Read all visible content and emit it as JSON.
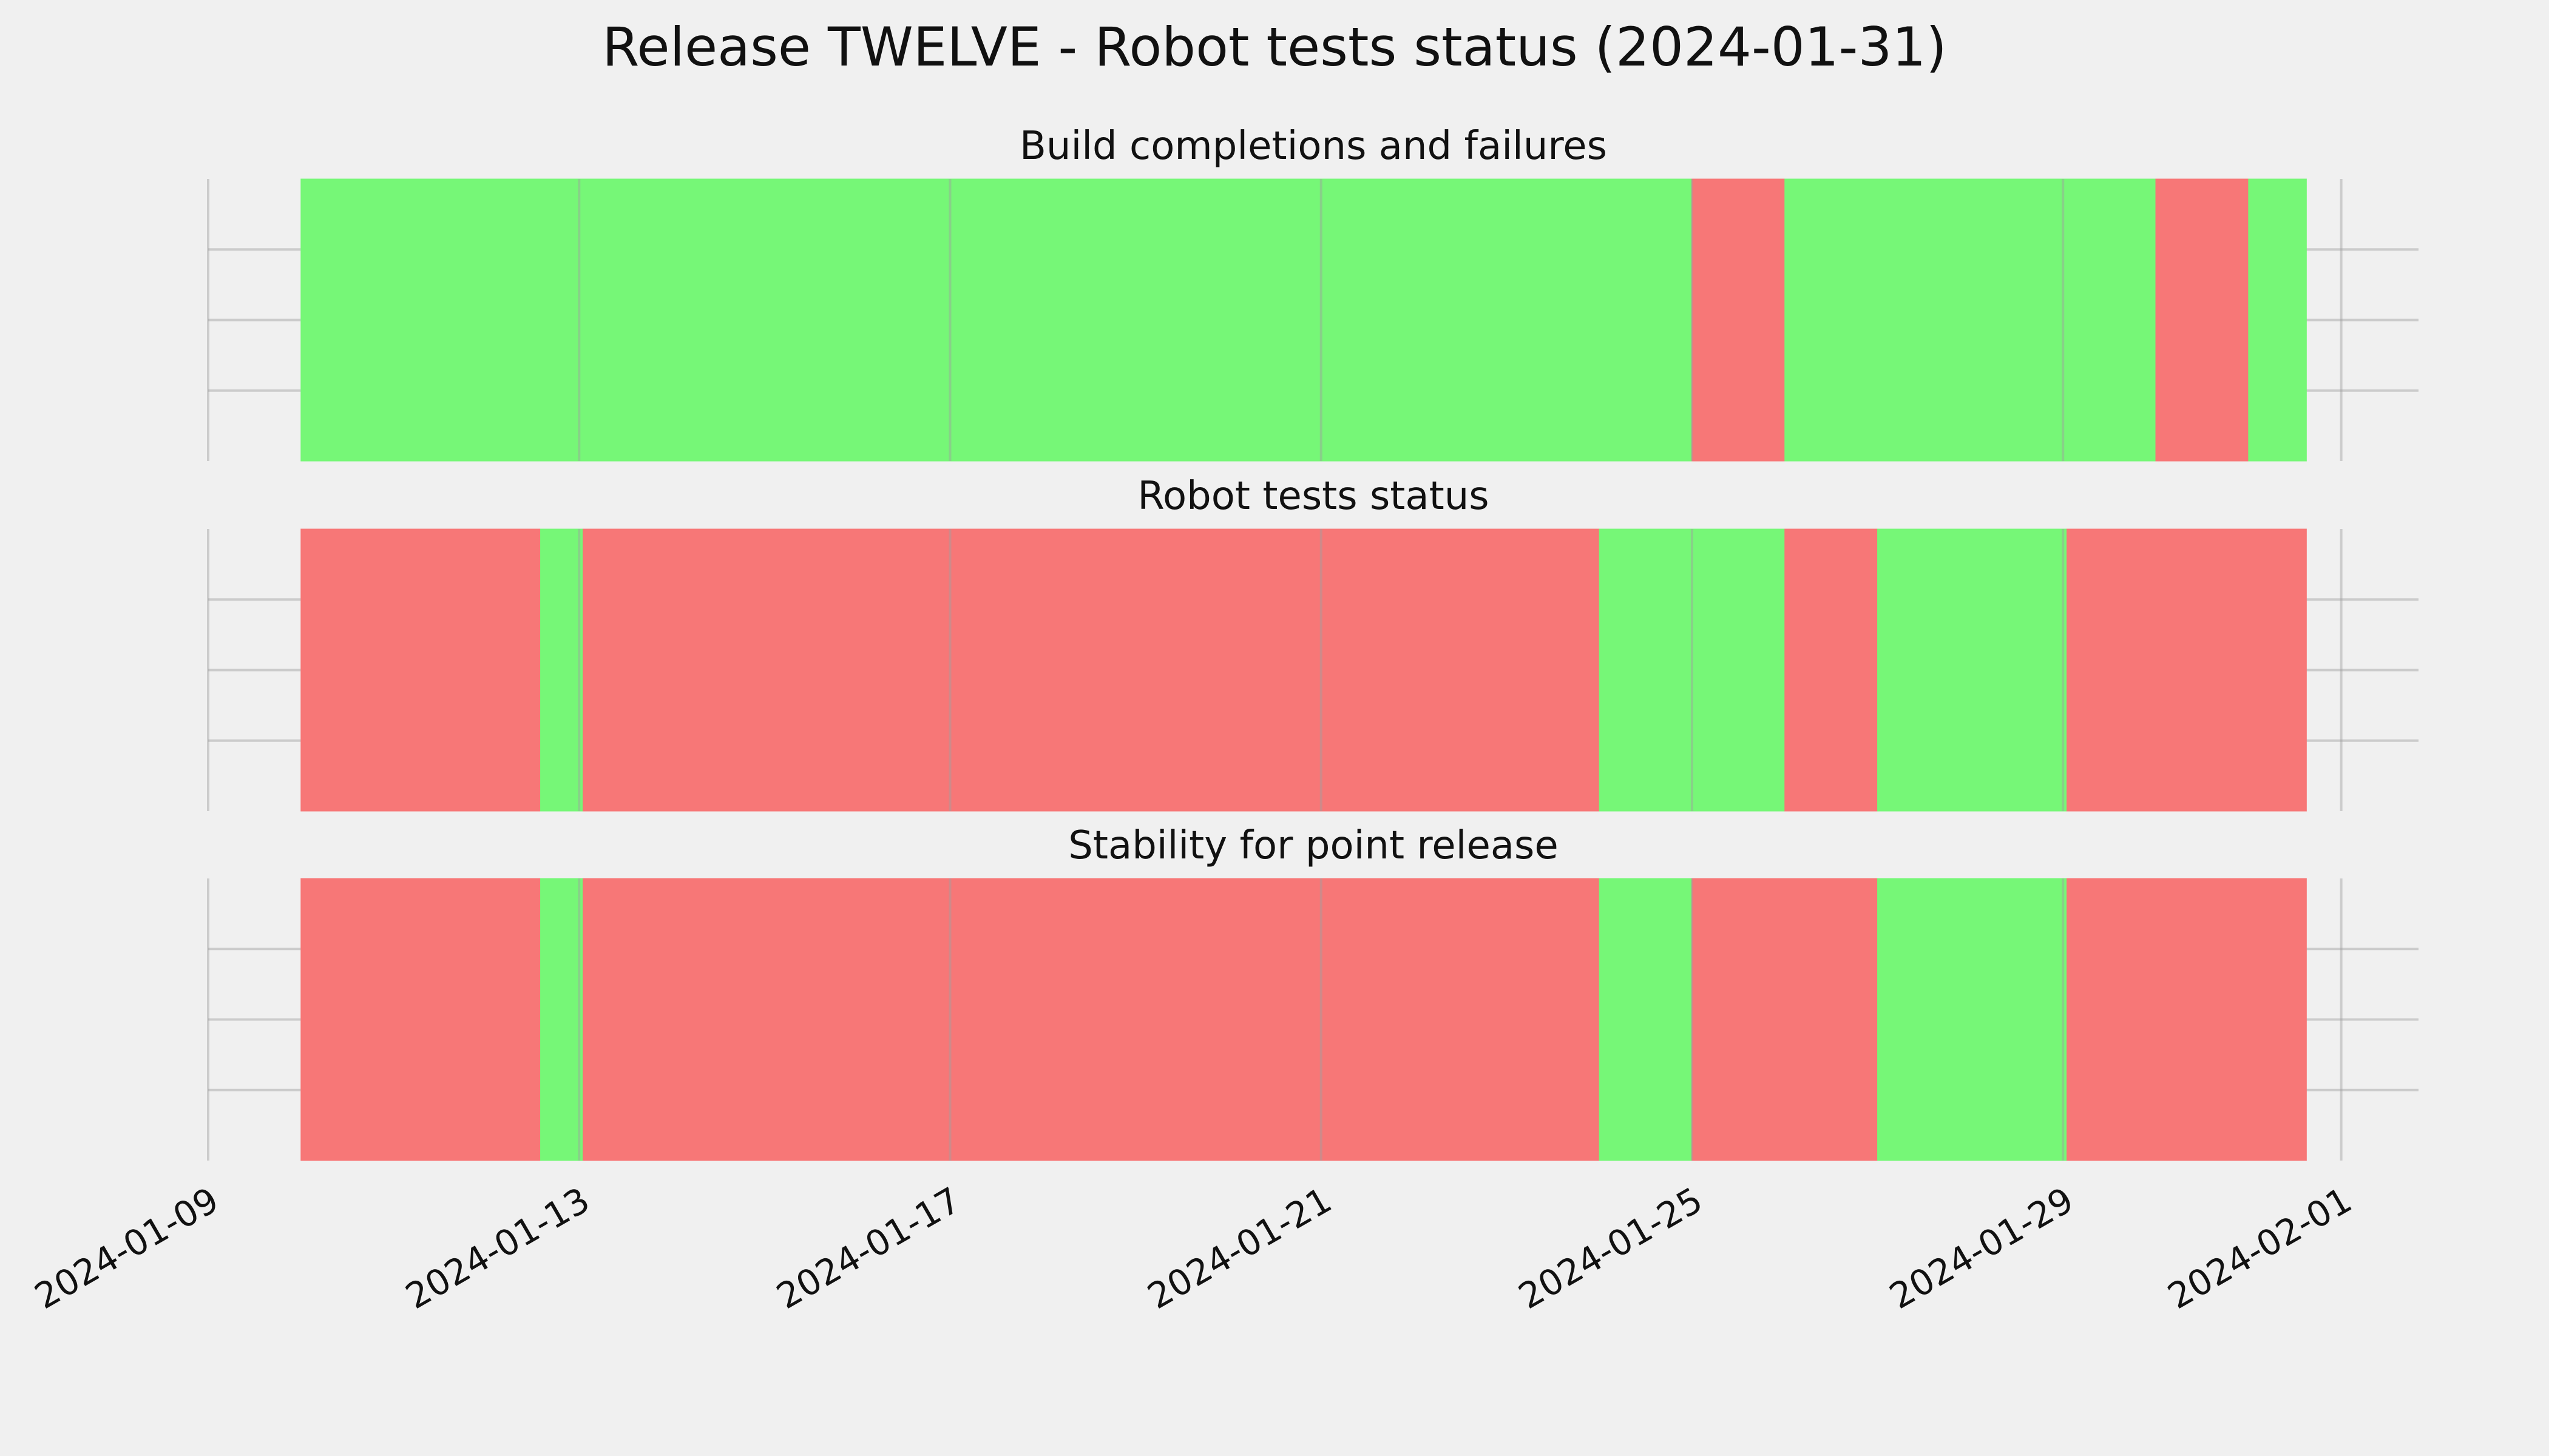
{
  "title": "Release TWELVE - Robot tests status (2024-01-31)",
  "colors": {
    "pass": "#76f777",
    "fail": "#f77777",
    "background": "#f0f0f0",
    "grid": "#cbcbcb"
  },
  "chart_data": {
    "type": "timeline",
    "x_axis": {
      "type": "date",
      "range": [
        "2024-01-09",
        "2024-02-01T20:00"
      ],
      "ticks": [
        "2024-01-09",
        "2024-01-13",
        "2024-01-17",
        "2024-01-21",
        "2024-01-25",
        "2024-01-29",
        "2024-02-01"
      ]
    },
    "grid": true,
    "panels": [
      {
        "title": "Build completions and failures",
        "segments": [
          {
            "start": "2024-01-10",
            "end": "2024-01-13",
            "status": "pass"
          },
          {
            "start": "2024-01-13",
            "end": "2024-01-17",
            "status": "pass"
          },
          {
            "start": "2024-01-17",
            "end": "2024-01-21",
            "status": "pass"
          },
          {
            "start": "2024-01-21",
            "end": "2024-01-25",
            "status": "pass"
          },
          {
            "start": "2024-01-25",
            "end": "2024-01-26",
            "status": "fail"
          },
          {
            "start": "2024-01-26",
            "end": "2024-01-29",
            "status": "pass"
          },
          {
            "start": "2024-01-29",
            "end": "2024-01-30",
            "status": "pass"
          },
          {
            "start": "2024-01-30",
            "end": "2024-01-31",
            "status": "fail"
          },
          {
            "start": "2024-01-31",
            "end": "2024-01-31T15:00",
            "status": "pass"
          }
        ]
      },
      {
        "title": "Robot tests status",
        "segments": [
          {
            "start": "2024-01-10",
            "end": "2024-01-12T14:00",
            "status": "fail"
          },
          {
            "start": "2024-01-12T14:00",
            "end": "2024-01-13T01:00",
            "status": "pass"
          },
          {
            "start": "2024-01-13T01:00",
            "end": "2024-01-24",
            "status": "fail"
          },
          {
            "start": "2024-01-24",
            "end": "2024-01-26",
            "status": "pass"
          },
          {
            "start": "2024-01-26",
            "end": "2024-01-27",
            "status": "fail"
          },
          {
            "start": "2024-01-27",
            "end": "2024-01-29T01:00",
            "status": "pass"
          },
          {
            "start": "2024-01-29T01:00",
            "end": "2024-01-31T15:00",
            "status": "fail"
          }
        ]
      },
      {
        "title": "Stability for point release",
        "segments": [
          {
            "start": "2024-01-10",
            "end": "2024-01-12T14:00",
            "status": "fail"
          },
          {
            "start": "2024-01-12T14:00",
            "end": "2024-01-13T01:00",
            "status": "pass"
          },
          {
            "start": "2024-01-13T01:00",
            "end": "2024-01-24",
            "status": "fail"
          },
          {
            "start": "2024-01-24",
            "end": "2024-01-25",
            "status": "pass"
          },
          {
            "start": "2024-01-25",
            "end": "2024-01-27",
            "status": "fail"
          },
          {
            "start": "2024-01-27",
            "end": "2024-01-29T01:00",
            "status": "pass"
          },
          {
            "start": "2024-01-29T01:00",
            "end": "2024-01-31T15:00",
            "status": "fail"
          }
        ]
      }
    ]
  }
}
